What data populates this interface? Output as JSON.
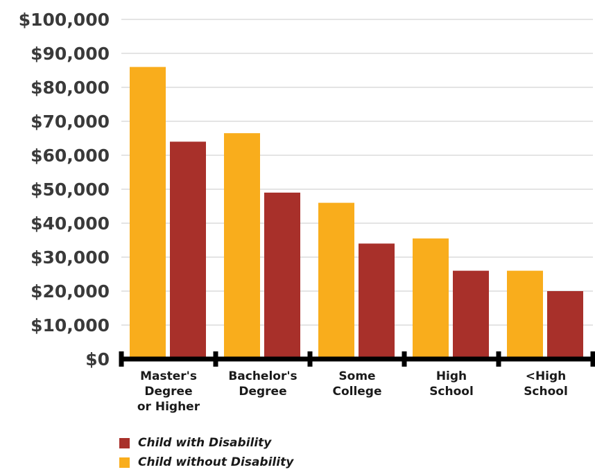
{
  "chart_data": {
    "type": "bar",
    "categories": [
      [
        "Master's",
        "Degree",
        "or Higher"
      ],
      [
        "Bachelor's",
        "Degree"
      ],
      [
        "Some",
        "College"
      ],
      [
        "High",
        "School"
      ],
      [
        "<High",
        "School"
      ]
    ],
    "series": [
      {
        "name": "Child without Disability",
        "color": "#F9AD1C",
        "values": [
          86000,
          66500,
          46000,
          35500,
          26000
        ]
      },
      {
        "name": "Child with Disability",
        "color": "#A8302A",
        "values": [
          64000,
          49000,
          34000,
          26000,
          20000
        ]
      }
    ],
    "y_ticks": [
      "$0",
      "$10,000",
      "$20,000",
      "$30,000",
      "$40,000",
      "$50,000",
      "$60,000",
      "$70,000",
      "$80,000",
      "$90,000",
      "$100,000"
    ],
    "ylim": [
      0,
      100000
    ],
    "grid": true,
    "legend": {
      "placement": "bottom-left",
      "entries": [
        {
          "label": "Child with Disability",
          "color": "#A8302A"
        },
        {
          "label": "Child without Disability",
          "color": "#F9AD1C"
        }
      ]
    },
    "title": "",
    "xlabel": "",
    "ylabel": ""
  }
}
